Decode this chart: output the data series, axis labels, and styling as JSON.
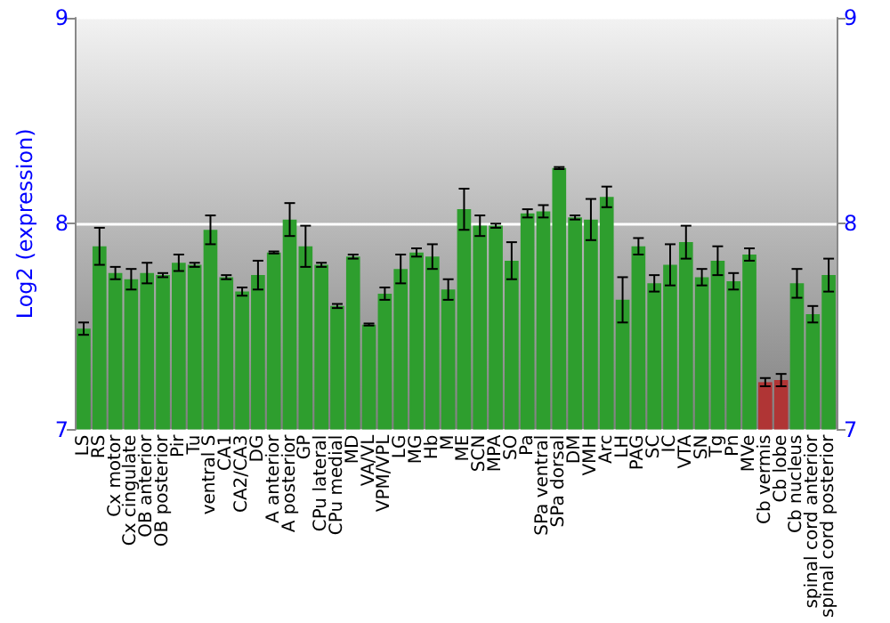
{
  "chart_data": {
    "type": "bar",
    "ylabel": "Log2 (expression)",
    "categories": [
      "LS",
      "RS",
      "Cx motor",
      "Cx cingulate",
      "OB anterior",
      "OB posterior",
      "Pir",
      "Tu",
      "ventral S",
      "CA1",
      "CA2/CA3",
      "DG",
      "A anterior",
      "A posterior",
      "GP",
      "CPu lateral",
      "CPu medial",
      "MD",
      "VA/VL",
      "VPM/VPL",
      "LG",
      "MG",
      "Hb",
      "M",
      "ME",
      "SCN",
      "MPA",
      "SO",
      "Pa",
      "SPa ventral",
      "SPa dorsal",
      "DM",
      "VMH",
      "Arc",
      "LH",
      "PAG",
      "SC",
      "IC",
      "VTA",
      "SN",
      "Tg",
      "Pn",
      "MVe",
      "Cb vermis",
      "Cb lobe",
      "Cb nucleus",
      "spinal cord anterior",
      "spinal cord posterior"
    ],
    "values": [
      7.49,
      7.89,
      7.76,
      7.73,
      7.76,
      7.75,
      7.81,
      7.8,
      7.97,
      7.74,
      7.67,
      7.75,
      7.86,
      8.02,
      7.89,
      7.8,
      7.6,
      7.84,
      7.51,
      7.66,
      7.78,
      7.86,
      7.84,
      7.68,
      8.07,
      7.99,
      7.99,
      7.82,
      8.05,
      8.06,
      8.27,
      8.03,
      8.02,
      8.13,
      7.63,
      7.89,
      7.71,
      7.8,
      7.91,
      7.74,
      7.82,
      7.72,
      7.85,
      7.23,
      7.24,
      7.71,
      7.56,
      7.75
    ],
    "errors": [
      0.03,
      0.09,
      0.03,
      0.05,
      0.05,
      0.01,
      0.04,
      0.01,
      0.07,
      0.01,
      0.02,
      0.07,
      0.005,
      0.08,
      0.1,
      0.01,
      0.01,
      0.01,
      0.005,
      0.03,
      0.07,
      0.02,
      0.06,
      0.05,
      0.1,
      0.05,
      0.01,
      0.09,
      0.02,
      0.03,
      0.005,
      0.01,
      0.1,
      0.05,
      0.11,
      0.04,
      0.04,
      0.1,
      0.08,
      0.04,
      0.07,
      0.04,
      0.03,
      0.02,
      0.03,
      0.07,
      0.04,
      0.08
    ],
    "colors": [
      "#2e9e2e",
      "#2e9e2e",
      "#2e9e2e",
      "#2e9e2e",
      "#2e9e2e",
      "#2e9e2e",
      "#2e9e2e",
      "#2e9e2e",
      "#2e9e2e",
      "#2e9e2e",
      "#2e9e2e",
      "#2e9e2e",
      "#2e9e2e",
      "#2e9e2e",
      "#2e9e2e",
      "#2e9e2e",
      "#2e9e2e",
      "#2e9e2e",
      "#2e9e2e",
      "#2e9e2e",
      "#2e9e2e",
      "#2e9e2e",
      "#2e9e2e",
      "#2e9e2e",
      "#2e9e2e",
      "#2e9e2e",
      "#2e9e2e",
      "#2e9e2e",
      "#2e9e2e",
      "#2e9e2e",
      "#2e9e2e",
      "#2e9e2e",
      "#2e9e2e",
      "#2e9e2e",
      "#2e9e2e",
      "#2e9e2e",
      "#2e9e2e",
      "#2e9e2e",
      "#2e9e2e",
      "#2e9e2e",
      "#2e9e2e",
      "#2e9e2e",
      "#2e9e2e",
      "#b03535",
      "#b03535",
      "#2e9e2e",
      "#2e9e2e",
      "#2e9e2e"
    ],
    "ylim": [
      7,
      9
    ],
    "yticks": [
      7,
      8,
      9
    ],
    "y2lim": [
      7,
      9
    ],
    "y2ticks": [
      7,
      8,
      9
    ],
    "grid": "y"
  }
}
